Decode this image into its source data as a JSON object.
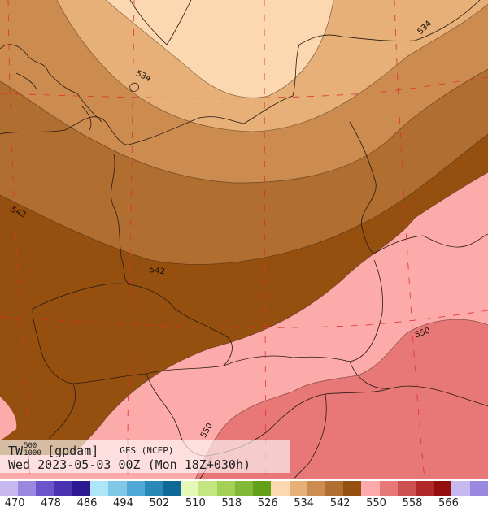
{
  "caption": {
    "var": "TW",
    "sup_top": "500",
    "sup_bottom": "1000",
    "unit": "[gpdam]",
    "model": "GFS (NCEP)",
    "datetime": "Wed 2023-05-03 00Z (Mon 18Z+030h)"
  },
  "contour_labels": [
    "534",
    "534",
    "542",
    "542",
    "550",
    "550"
  ],
  "legend": {
    "labels": [
      "470",
      "478",
      "486",
      "494",
      "502",
      "510",
      "518",
      "526",
      "534",
      "542",
      "550",
      "558",
      "566"
    ],
    "colors": [
      "#c8b8f0",
      "#9a88e0",
      "#6a55cc",
      "#4a32b0",
      "#2c1890",
      "#aee6f8",
      "#80c8e8",
      "#50a8d8",
      "#2888b8",
      "#0e6898",
      "#e6f8b8",
      "#c4e680",
      "#a4d058",
      "#82b838",
      "#62a018",
      "#fcd8b0",
      "#e6b078",
      "#cc8c50",
      "#b06e30",
      "#955010",
      "#fdaaaa",
      "#e87878",
      "#cc5050",
      "#b02828",
      "#950e0e",
      "#c8b8f0",
      "#9a88e0"
    ]
  },
  "map_colors": {
    "fill_526": "#fcd8b0",
    "fill_530": "#e6b078",
    "fill_534": "#cc8c50",
    "fill_538": "#b06e30",
    "fill_542": "#955010",
    "fill_546": "#fdaaaa",
    "fill_550": "#e87878",
    "border": "#2a1a10",
    "grid": "#e03030"
  }
}
